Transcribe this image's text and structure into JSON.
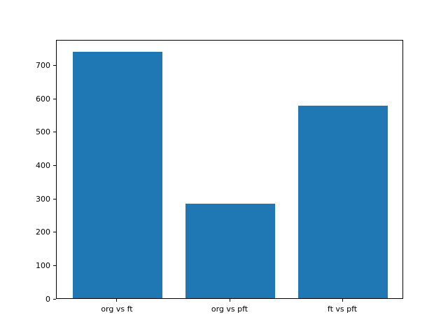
{
  "chart_data": {
    "type": "bar",
    "title": "",
    "xlabel": "",
    "ylabel": "",
    "categories": [
      "org vs ft",
      "org vs pft",
      "ft vs pft"
    ],
    "values": [
      740,
      283,
      578
    ],
    "yticks": [
      0,
      100,
      200,
      300,
      400,
      500,
      600,
      700
    ],
    "ylim": [
      0,
      777
    ],
    "xlim": [
      -0.54,
      2.54
    ],
    "bar_width": 0.8,
    "bar_color": "#1f77b4",
    "axis_color": "#000000",
    "background_color": "#ffffff",
    "grid": false,
    "legend": null
  }
}
